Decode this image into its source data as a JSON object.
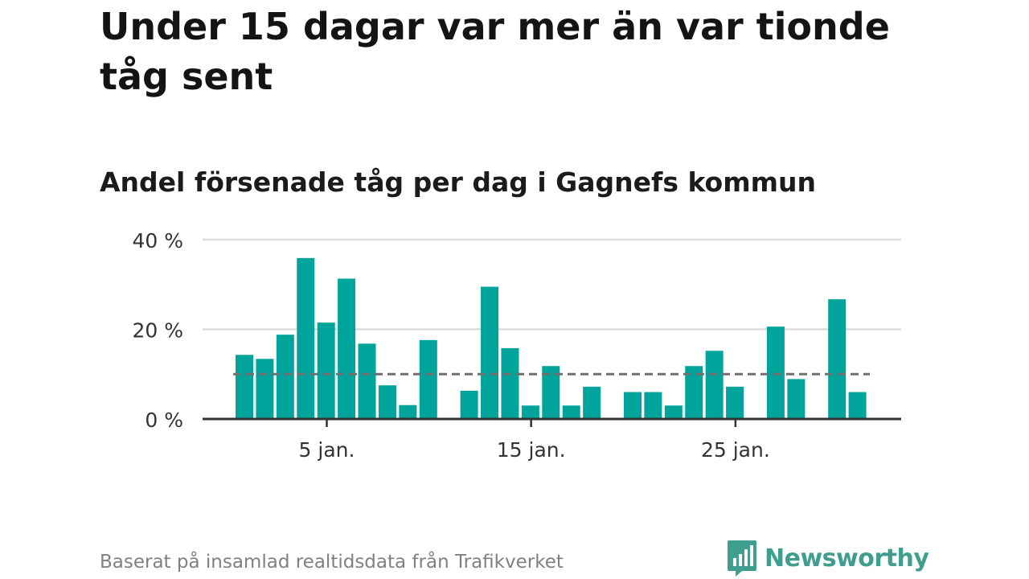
{
  "title": "Under 15 dagar var mer än var tionde tåg sent",
  "subtitle": "Andel försenade tåg per dag i Gagnefs kommun",
  "source": "Baserat på insamlad realtidsdata från Trafikverket",
  "brand": "Newsworthy",
  "colors": {
    "bar": "#00a49a",
    "reference_line": "#707070",
    "grid": "#dcdcdc",
    "axis": "#333333",
    "brand": "#3f9e8e"
  },
  "chart_data": {
    "type": "bar",
    "days": [
      1,
      2,
      3,
      4,
      5,
      6,
      7,
      8,
      9,
      10,
      11,
      12,
      13,
      14,
      15,
      16,
      17,
      18,
      19,
      20,
      21,
      22,
      23,
      24,
      25,
      26,
      27,
      28,
      29,
      30,
      31
    ],
    "values": [
      14.3,
      13.4,
      18.8,
      35.9,
      21.5,
      31.3,
      16.8,
      7.5,
      3.1,
      17.6,
      null,
      6.3,
      29.5,
      15.8,
      3.0,
      11.8,
      3.0,
      7.2,
      null,
      6.0,
      6.0,
      3.0,
      11.8,
      15.2,
      7.2,
      null,
      20.6,
      8.9,
      null,
      26.7,
      6.0
    ],
    "reference_line": 10,
    "ylim": [
      0,
      40
    ],
    "y_ticks": [
      {
        "value": 0,
        "label": "0 %"
      },
      {
        "value": 20,
        "label": "20 %"
      },
      {
        "value": 40,
        "label": "40 %"
      }
    ],
    "x_ticks": [
      {
        "day": 5,
        "label": "5 jan."
      },
      {
        "day": 15,
        "label": "15 jan."
      },
      {
        "day": 25,
        "label": "25 jan."
      }
    ],
    "grid": true,
    "legend": "none"
  }
}
